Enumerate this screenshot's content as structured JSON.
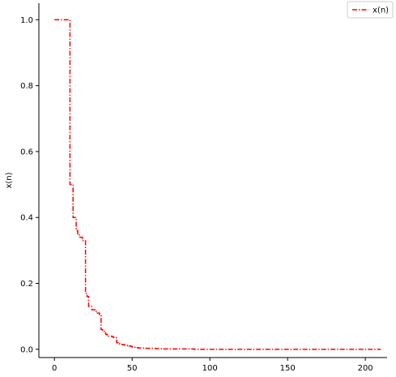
{
  "chart_data": {
    "type": "line",
    "title": "",
    "xlabel": "",
    "ylabel": "x(n)",
    "xlim": [
      -10,
      214
    ],
    "ylim": [
      -0.025,
      1.05
    ],
    "xticks": [
      0,
      50,
      100,
      150,
      200
    ],
    "yticks": [
      0.0,
      0.2,
      0.4,
      0.6,
      0.8,
      1.0
    ],
    "xtick_labels": [
      "0",
      "50",
      "100",
      "150",
      "200"
    ],
    "ytick_labels": [
      "0.0",
      "0.2",
      "0.4",
      "0.6",
      "0.8",
      "1.0"
    ],
    "grid": false,
    "legend": {
      "position": "top-right",
      "entries": [
        "x(n)"
      ]
    },
    "series": [
      {
        "name": "x(n)",
        "color": "#ff0000",
        "linestyle": "dashdot",
        "x": [
          0,
          1,
          2,
          3,
          4,
          5,
          6,
          7,
          8,
          9,
          10,
          11,
          12,
          13,
          14,
          15,
          16,
          17,
          18,
          19,
          20,
          21,
          22,
          23,
          24,
          25,
          26,
          27,
          28,
          29,
          30,
          31,
          32,
          33,
          34,
          35,
          36,
          37,
          38,
          39,
          40,
          41,
          42,
          43,
          44,
          45,
          46,
          47,
          48,
          49,
          50,
          52,
          54,
          56,
          58,
          60,
          65,
          70,
          80,
          90,
          100,
          120,
          150,
          180,
          210
        ],
        "y": [
          1.0,
          1.0,
          1.0,
          1.0,
          1.0,
          1.0,
          1.0,
          1.0,
          1.0,
          1.0,
          0.5,
          0.5,
          0.4,
          0.4,
          0.36,
          0.35,
          0.34,
          0.34,
          0.33,
          0.33,
          0.17,
          0.16,
          0.13,
          0.13,
          0.12,
          0.12,
          0.115,
          0.11,
          0.11,
          0.105,
          0.06,
          0.055,
          0.05,
          0.045,
          0.04,
          0.04,
          0.04,
          0.038,
          0.036,
          0.035,
          0.02,
          0.018,
          0.016,
          0.015,
          0.014,
          0.013,
          0.012,
          0.011,
          0.01,
          0.009,
          0.006,
          0.005,
          0.004,
          0.004,
          0.003,
          0.003,
          0.002,
          0.001,
          0.001,
          0.0,
          0.0,
          0.0,
          0.0,
          0.0,
          0.0
        ]
      }
    ]
  }
}
